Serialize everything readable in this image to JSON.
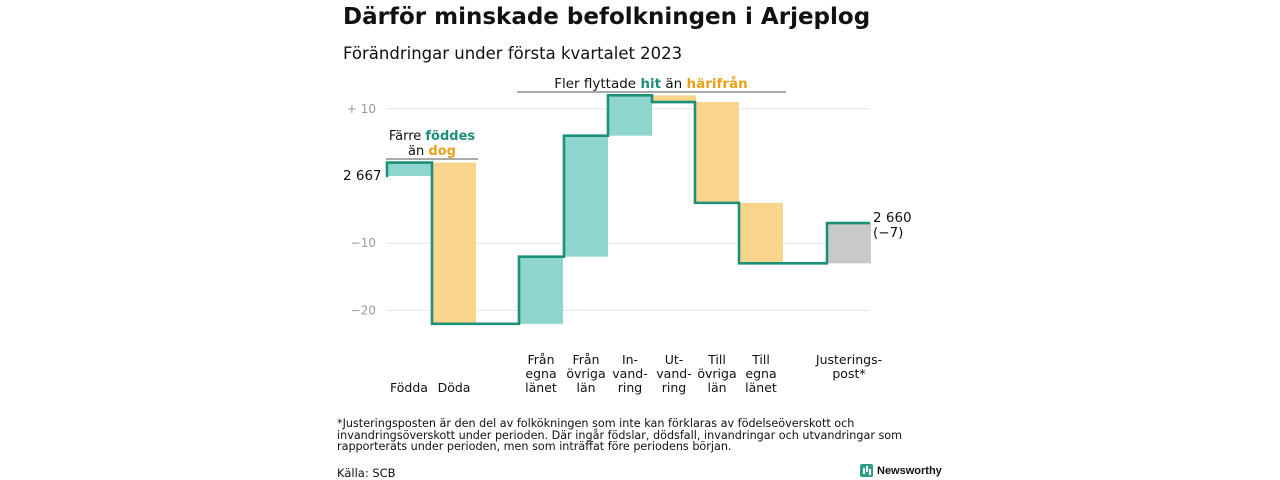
{
  "title": "Därför minskade befolkningen i Arjeplog",
  "subtitle": "Förändringar under första kvartalet 2023",
  "chart_data": {
    "type": "waterfall",
    "start": {
      "value": 2667,
      "label": "2 667"
    },
    "end": {
      "label_line1": "2 660",
      "label_line2": "(−7)"
    },
    "yticks": [
      {
        "value": 10,
        "label": "+ 10"
      },
      {
        "value": 0,
        "label": ""
      },
      {
        "value": -10,
        "label": "−10"
      },
      {
        "value": -20,
        "label": "−20"
      }
    ],
    "grid": true,
    "colors": {
      "positive": "#8ed6cd",
      "negative": "#f9d48c",
      "adjustment": "#c9c9c9",
      "line": "#1e8f78"
    },
    "steps": [
      {
        "label": "Födda",
        "label_lines": [
          "Födda"
        ],
        "delta": 2,
        "kind": "positive"
      },
      {
        "label": "Döda",
        "label_lines": [
          "Döda"
        ],
        "delta": -24,
        "kind": "negative"
      },
      {
        "label": "Från egna länet",
        "label_lines": [
          "Från",
          "egna",
          "länet"
        ],
        "delta": 10,
        "kind": "positive"
      },
      {
        "label": "Från övriga län",
        "label_lines": [
          "Från",
          "övriga",
          "län"
        ],
        "delta": 18,
        "kind": "positive"
      },
      {
        "label": "In-vand-ring",
        "label_lines": [
          "In-",
          "vand-",
          "ring"
        ],
        "delta": 6,
        "kind": "positive"
      },
      {
        "label": "Ut-vand-ring",
        "label_lines": [
          "Ut-",
          "vand-",
          "ring"
        ],
        "delta": -1,
        "kind": "negative"
      },
      {
        "label": "Till övriga län",
        "label_lines": [
          "Till",
          "övriga",
          "län"
        ],
        "delta": -15,
        "kind": "negative"
      },
      {
        "label": "Till egna länet",
        "label_lines": [
          "Till",
          "egna",
          "länet"
        ],
        "delta": -9,
        "kind": "negative"
      },
      {
        "label": "Justeringspost*",
        "label_lines": [
          "Justerings-",
          "post*"
        ],
        "delta": 6,
        "kind": "adjustment"
      }
    ],
    "annotations": [
      {
        "id": "births",
        "line1_prefix": "Färre ",
        "line1_highlight": "föddes",
        "line2_prefix": "än ",
        "line2_highlight": "dog"
      },
      {
        "id": "migration",
        "prefix": "Fler flyttade ",
        "highlight1": "hit",
        "middle": " än ",
        "highlight2": "härifrån"
      }
    ]
  },
  "footnote": "*Justeringsposten är den del av folkökningen som inte kan förklaras av födelseöverskott och invandringsöverskott under perioden. Där ingår födslar, dödsfall, invandringar och utvandringar som rapporterats under perioden, men som inträffat före periodens början.",
  "source": "Källa: SCB",
  "brand": {
    "name": "Newsworthy",
    "icon": "bar-chart-icon"
  }
}
